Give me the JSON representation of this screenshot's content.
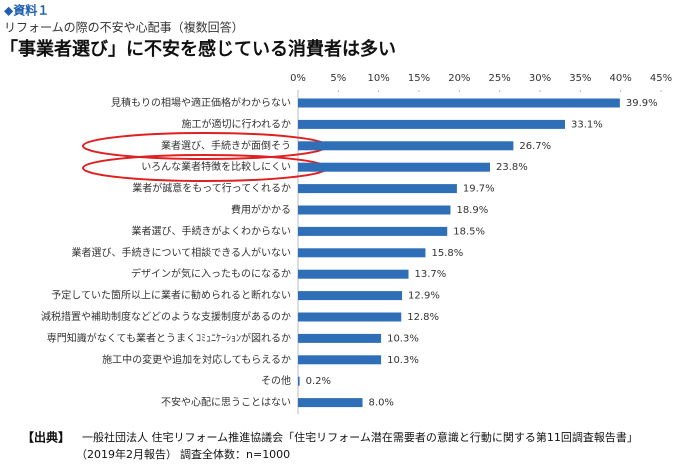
{
  "chart_data": {
    "type": "barh",
    "label": "◆資料１",
    "subtitle": "リフォームの際の不安や心配事（複数回答）",
    "title": "「事業者選び」に不安を感じている消費者は多い",
    "categories": [
      "見積もりの相場や適正価格がわからない",
      "施工が適切に行われるか",
      "業者選び、手続きが面倒そう",
      "いろんな業者特徴を比較しにくい",
      "業者が誠意をもって行ってくれるか",
      "費用がかかる",
      "業者選び、手続きがよくわからない",
      "業者選び、手続きについて相談できる人がいない",
      "デザインが気に入ったものになるか",
      "予定していた箇所以上に業者に勧められると断れない",
      "減税措置や補助制度などどのような支援制度があるのか",
      "専門知識がなくても業者とうまくｺﾐｭﾆｹｰｼｮﾝが図れるか",
      "施工中の変更や追加を対応してもらえるか",
      "その他",
      "不安や心配に思うことはない"
    ],
    "values": [
      39.9,
      33.1,
      26.7,
      23.8,
      19.7,
      18.9,
      18.5,
      15.8,
      13.7,
      12.9,
      12.8,
      10.3,
      10.3,
      0.2,
      8.0
    ],
    "value_labels": [
      "39.9%",
      "33.1%",
      "26.7%",
      "23.8%",
      "19.7%",
      "18.9%",
      "18.5%",
      "15.8%",
      "13.7%",
      "12.9%",
      "12.8%",
      "10.3%",
      "10.3%",
      "0.2%",
      "8.0%"
    ],
    "color": "#2e6fb7",
    "xlim": [
      0,
      45
    ],
    "xticks": [
      {
        "value": 0,
        "label": "0%"
      },
      {
        "value": 5,
        "label": "5%"
      },
      {
        "value": 10,
        "label": "10%"
      },
      {
        "value": 15,
        "label": "15%"
      },
      {
        "value": 20,
        "label": "20%"
      },
      {
        "value": 25,
        "label": "25%"
      },
      {
        "value": 30,
        "label": "30%"
      },
      {
        "value": 35,
        "label": "35%"
      },
      {
        "value": 40,
        "label": "40%"
      },
      {
        "value": 45,
        "label": "45%"
      }
    ]
  },
  "footer": {
    "source_label": "【出典】",
    "source": "一般社団法人 住宅リフォーム推進協議会「住宅リフォーム潜在需要者の意識と行動に関する第11回調査報告書」",
    "note": "（2019年2月報告）",
    "sample": "調査全体数：n=1000"
  }
}
